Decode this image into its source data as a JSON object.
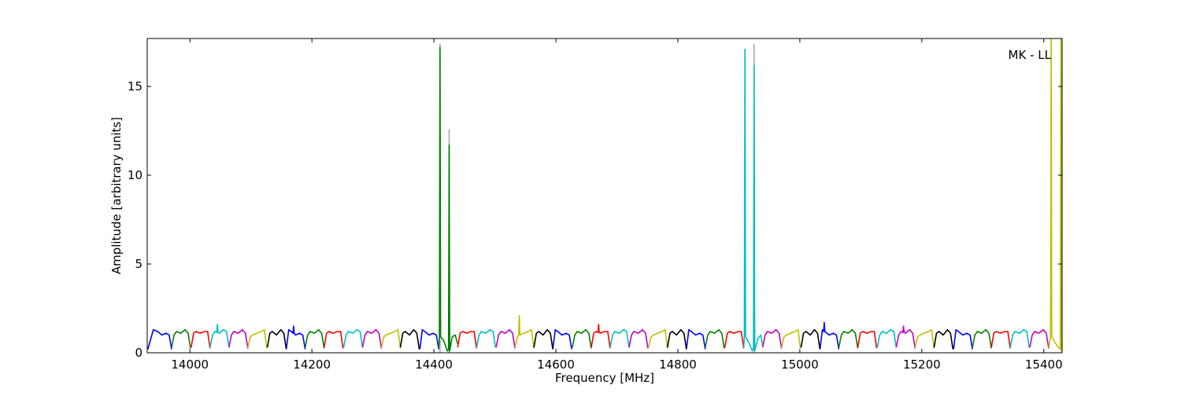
{
  "chart_data": {
    "type": "line",
    "xlabel": "Frequency [MHz]",
    "ylabel": "Amplitude [arbitrary units]",
    "annotation": "MK - LL",
    "xlim": [
      13930,
      15430
    ],
    "ylim": [
      0,
      17.7
    ],
    "xticks": [
      14000,
      14200,
      14400,
      14600,
      14800,
      15000,
      15200,
      15400
    ],
    "yticks": [
      0,
      5,
      10,
      15
    ],
    "series": [
      {
        "color": "#aaaaaa",
        "x": [
          14410,
          14410,
          null,
          14425,
          14425,
          null,
          14925,
          14925
        ],
        "values": [
          0,
          17.4,
          null,
          0,
          12.6,
          null,
          0,
          17.4
        ]
      },
      {
        "color": "#0000ff",
        "x": [
          13931,
          13940,
          13947,
          13954,
          13961,
          13966,
          13970,
          null,
          14158,
          14162,
          14166,
          14169,
          14170,
          14171,
          14173,
          14180,
          14185,
          14189,
          null,
          14377,
          14381,
          14385,
          14392,
          14399,
          14404,
          14408,
          null,
          14595,
          14599,
          14603,
          14610,
          14617,
          14622,
          14626,
          null,
          14814,
          14818,
          14822,
          14829,
          14836,
          14841,
          14845,
          null,
          15033,
          15037,
          15039,
          15040,
          15041,
          15048,
          15055,
          15060,
          15064,
          null,
          15252,
          15256,
          15260,
          15267,
          15274,
          15279,
          15283
        ],
        "values": [
          0.2,
          1.3,
          1.2,
          1.0,
          1.1,
          1.0,
          0.2,
          null,
          0.2,
          1.3,
          1.2,
          1.1,
          1.5,
          1.1,
          1.0,
          1.1,
          1.0,
          0.2,
          null,
          0.2,
          1.3,
          1.2,
          1.0,
          1.1,
          1.0,
          0.2,
          null,
          0.2,
          1.3,
          1.2,
          1.0,
          1.1,
          1.0,
          0.2,
          null,
          0.2,
          1.3,
          1.2,
          1.0,
          1.1,
          1.0,
          0.2,
          null,
          0.2,
          1.3,
          1.2,
          1.7,
          1.2,
          1.0,
          1.1,
          1.0,
          0.2,
          null,
          0.2,
          1.3,
          1.2,
          1.0,
          1.1,
          1.0,
          0.2
        ]
      },
      {
        "color": "#008000",
        "x": [
          13970,
          13974,
          13978,
          13985,
          13992,
          13997,
          14001,
          null,
          14189,
          14193,
          14197,
          14204,
          14211,
          14216,
          14220,
          null,
          14408,
          14409,
          14410,
          14411,
          14416,
          14422,
          14424,
          14425,
          14426,
          14430,
          14435,
          14439,
          null,
          14627,
          14631,
          14635,
          14642,
          14649,
          14654,
          14658,
          null,
          14845,
          14849,
          14853,
          14860,
          14867,
          14872,
          14876,
          null,
          15064,
          15068,
          15072,
          15079,
          15086,
          15091,
          15095,
          null,
          15283,
          15287,
          15291,
          15298,
          15305,
          15310,
          15314
        ],
        "values": [
          0.3,
          1.0,
          1.2,
          1.1,
          1.3,
          1.1,
          0.25,
          null,
          0.3,
          1.0,
          1.2,
          1.1,
          1.3,
          1.1,
          0.25,
          null,
          0.3,
          0.9,
          17.2,
          0.9,
          0.7,
          0.1,
          0.2,
          11.7,
          0.1,
          0.9,
          1.0,
          0.5,
          null,
          0.3,
          1.0,
          1.2,
          1.1,
          1.3,
          1.1,
          0.25,
          null,
          0.3,
          1.0,
          1.2,
          1.1,
          1.3,
          1.1,
          0.25,
          null,
          0.3,
          1.0,
          1.2,
          1.1,
          1.3,
          1.1,
          0.25,
          null,
          0.3,
          1.0,
          1.2,
          1.1,
          1.3,
          1.1,
          0.25
        ]
      },
      {
        "color": "#ff0000",
        "x": [
          14002,
          14006,
          14010,
          14017,
          14024,
          14029,
          14033,
          null,
          14220,
          14224,
          14228,
          14235,
          14242,
          14247,
          14251,
          null,
          14439,
          14443,
          14447,
          14454,
          14461,
          14466,
          14470,
          null,
          14658,
          14662,
          14666,
          14669,
          14670,
          14671,
          14673,
          14680,
          14685,
          14689,
          null,
          14877,
          14881,
          14885,
          14892,
          14899,
          14904,
          14908,
          null,
          15095,
          15099,
          15103,
          15110,
          15117,
          15122,
          15126,
          null,
          15314,
          15318,
          15322,
          15329,
          15336,
          15341,
          15345
        ],
        "values": [
          0.3,
          1.1,
          1.2,
          1.1,
          1.2,
          1.2,
          0.25,
          null,
          0.3,
          1.1,
          1.2,
          1.1,
          1.2,
          1.2,
          0.25,
          null,
          0.3,
          1.1,
          1.2,
          1.1,
          1.2,
          1.2,
          0.25,
          null,
          0.3,
          1.1,
          1.2,
          1.15,
          1.6,
          1.15,
          1.1,
          1.2,
          1.2,
          0.25,
          null,
          0.3,
          1.1,
          1.2,
          1.1,
          1.2,
          1.2,
          0.25,
          null,
          0.3,
          1.1,
          1.2,
          1.1,
          1.2,
          1.2,
          0.25,
          null,
          0.3,
          1.1,
          1.2,
          1.1,
          1.2,
          1.2,
          0.25
        ]
      },
      {
        "color": "#00bfbf",
        "x": [
          14033,
          14037,
          14041,
          14044,
          14045,
          14046,
          14048,
          14055,
          14060,
          14064,
          null,
          14252,
          14256,
          14260,
          14267,
          14274,
          14279,
          14283,
          null,
          14470,
          14474,
          14478,
          14485,
          14492,
          14497,
          14501,
          null,
          14689,
          14693,
          14697,
          14704,
          14711,
          14716,
          14720,
          null,
          14908,
          14909,
          14910,
          14911,
          14916,
          14922,
          14924,
          14925,
          14926,
          14931,
          14936,
          14939,
          null,
          15127,
          15131,
          15135,
          15142,
          15149,
          15154,
          15158,
          null,
          15345,
          15349,
          15353,
          15360,
          15367,
          15372,
          15376
        ],
        "values": [
          0.3,
          1.0,
          1.2,
          1.15,
          1.6,
          1.15,
          1.1,
          1.3,
          1.2,
          0.3,
          null,
          0.3,
          1.0,
          1.2,
          1.1,
          1.3,
          1.2,
          0.3,
          null,
          0.3,
          1.0,
          1.2,
          1.1,
          1.3,
          1.2,
          0.3,
          null,
          0.3,
          1.0,
          1.2,
          1.1,
          1.3,
          1.2,
          0.3,
          null,
          0.3,
          0.9,
          17.1,
          0.9,
          0.6,
          0.1,
          0.3,
          16.2,
          0.1,
          0.8,
          1.0,
          0.4,
          null,
          0.3,
          1.0,
          1.2,
          1.1,
          1.3,
          1.2,
          0.3,
          null,
          0.3,
          1.0,
          1.2,
          1.1,
          1.3,
          1.2,
          0.3
        ]
      },
      {
        "color": "#bf00bf",
        "x": [
          14064,
          14068,
          14072,
          14079,
          14086,
          14091,
          14095,
          null,
          14283,
          14287,
          14291,
          14298,
          14305,
          14310,
          14314,
          null,
          14502,
          14506,
          14510,
          14517,
          14524,
          14529,
          14533,
          null,
          14720,
          14724,
          14728,
          14735,
          14742,
          14747,
          14751,
          null,
          14939,
          14943,
          14947,
          14954,
          14961,
          14966,
          14970,
          null,
          15158,
          15162,
          15166,
          15169,
          15170,
          15171,
          15173,
          15180,
          15185,
          15189,
          null,
          15377,
          15381,
          15385,
          15392,
          15399,
          15404,
          15408
        ],
        "values": [
          0.3,
          1.0,
          1.2,
          1.1,
          1.3,
          1.1,
          0.25,
          null,
          0.3,
          1.0,
          1.2,
          1.1,
          1.3,
          1.1,
          0.25,
          null,
          0.3,
          1.0,
          1.2,
          1.1,
          1.3,
          1.1,
          0.25,
          null,
          0.3,
          1.0,
          1.2,
          1.1,
          1.3,
          1.1,
          0.25,
          null,
          0.3,
          1.0,
          1.2,
          1.1,
          1.3,
          1.1,
          0.25,
          null,
          0.3,
          1.0,
          1.2,
          1.15,
          1.5,
          1.15,
          1.1,
          1.3,
          1.1,
          0.25,
          null,
          0.3,
          1.0,
          1.2,
          1.1,
          1.3,
          1.1,
          0.25
        ]
      },
      {
        "color": "#bfbf00",
        "x": [
          14095,
          14099,
          14103,
          14110,
          14117,
          14122,
          14126,
          null,
          14314,
          14318,
          14322,
          14329,
          14336,
          14341,
          14345,
          null,
          14533,
          14537,
          14539,
          14540,
          14541,
          14548,
          14555,
          14560,
          14564,
          null,
          14752,
          14756,
          14760,
          14767,
          14774,
          14779,
          14783,
          null,
          14970,
          14974,
          14978,
          14985,
          14992,
          14997,
          15001,
          null,
          15189,
          15193,
          15197,
          15204,
          15211,
          15216,
          15220,
          null,
          15408,
          15411,
          15412,
          15413,
          15418,
          15424,
          15427,
          15428,
          15429,
          15434,
          15439
        ],
        "values": [
          0.3,
          0.9,
          1.0,
          1.1,
          1.2,
          1.3,
          0.25,
          null,
          0.3,
          0.9,
          1.0,
          1.1,
          1.2,
          1.3,
          0.25,
          null,
          0.3,
          0.9,
          1.0,
          2.1,
          1.0,
          1.1,
          1.2,
          1.3,
          0.25,
          null,
          0.3,
          0.9,
          1.0,
          1.1,
          1.2,
          1.3,
          0.25,
          null,
          0.3,
          0.9,
          1.0,
          1.1,
          1.2,
          1.3,
          0.25,
          null,
          0.3,
          0.9,
          1.0,
          1.1,
          1.2,
          1.3,
          0.25,
          null,
          0.3,
          0.9,
          18,
          0.9,
          0.6,
          0.3,
          0.2,
          18,
          0.1,
          0.8,
          1.0
        ]
      },
      {
        "color": "#000000",
        "x": [
          14127,
          14131,
          14135,
          14142,
          14149,
          14154,
          14158,
          null,
          14345,
          14349,
          14353,
          14360,
          14367,
          14372,
          14376,
          null,
          14564,
          14568,
          14572,
          14579,
          14586,
          14591,
          14595,
          null,
          14783,
          14787,
          14791,
          14798,
          14805,
          14810,
          14814,
          null,
          15002,
          15006,
          15010,
          15017,
          15024,
          15029,
          15033,
          null,
          15220,
          15224,
          15228,
          15235,
          15242,
          15247,
          15251
        ],
        "values": [
          0.3,
          1.1,
          1.2,
          1.0,
          1.3,
          1.1,
          0.2,
          null,
          0.3,
          1.1,
          1.2,
          1.0,
          1.3,
          1.1,
          0.2,
          null,
          0.3,
          1.1,
          1.2,
          1.0,
          1.3,
          1.1,
          0.2,
          null,
          0.3,
          1.1,
          1.2,
          1.0,
          1.3,
          1.1,
          0.2,
          null,
          0.3,
          1.1,
          1.2,
          1.0,
          1.3,
          1.1,
          0.2,
          null,
          0.3,
          1.1,
          1.2,
          1.0,
          1.3,
          1.1,
          0.2
        ]
      }
    ]
  }
}
